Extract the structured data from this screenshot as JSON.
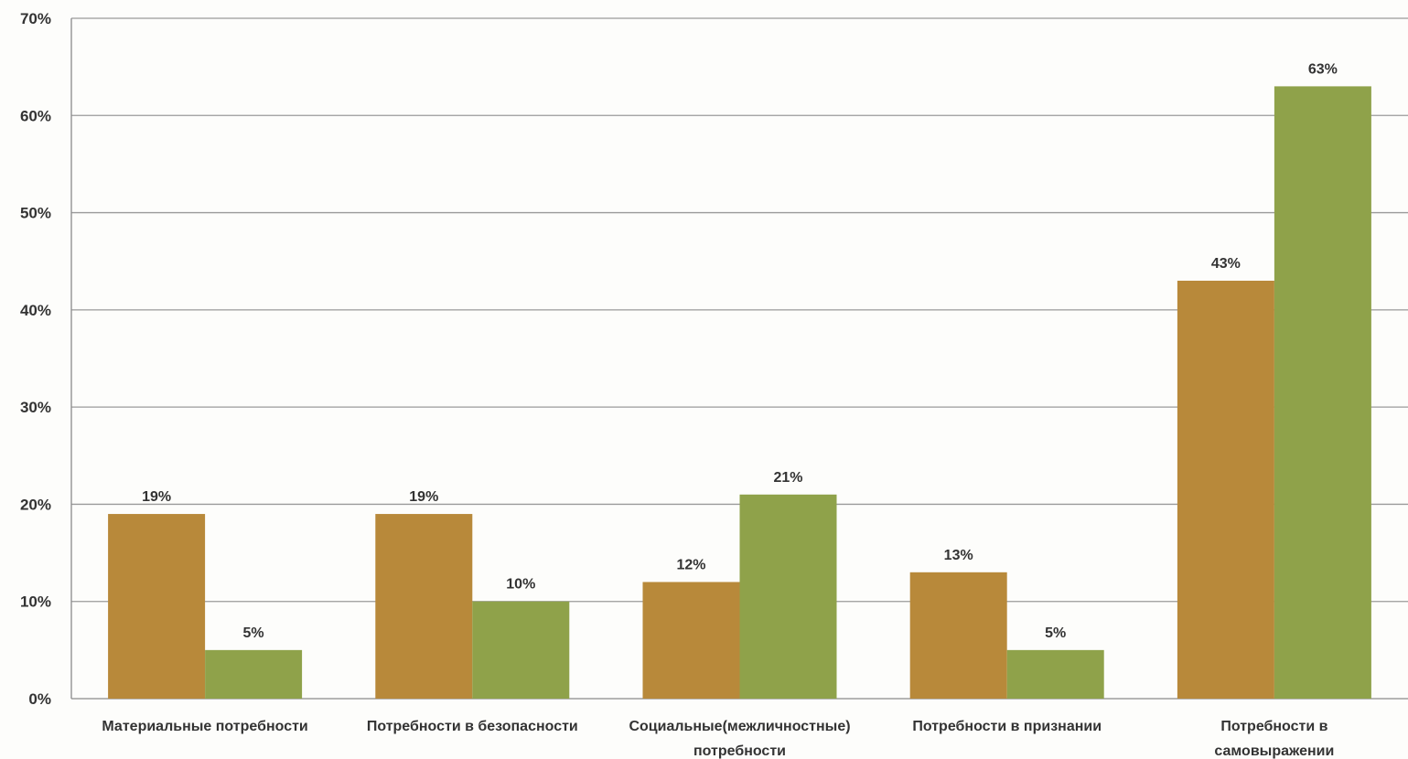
{
  "chart_data": {
    "type": "bar",
    "categories": [
      [
        "Материальные потребности"
      ],
      [
        "Потребности в безопасности"
      ],
      [
        "Социальные(межличностные)",
        "потребности"
      ],
      [
        "Потребности в признании"
      ],
      [
        "Потребности в",
        "самовыражении"
      ]
    ],
    "series": [
      {
        "values": [
          19,
          19,
          12,
          13,
          43
        ],
        "labels": [
          "19%",
          "19%",
          "12%",
          "13%",
          "43%"
        ],
        "color": "#b8893a"
      },
      {
        "values": [
          5,
          10,
          21,
          5,
          63
        ],
        "labels": [
          "5%",
          "10%",
          "21%",
          "5%",
          "63%"
        ],
        "color": "#8fa24a"
      }
    ],
    "ylim": [
      0,
      70
    ],
    "yticks": [
      0,
      10,
      20,
      30,
      40,
      50,
      60,
      70
    ],
    "ytick_labels": [
      "0%",
      "10%",
      "20%",
      "30%",
      "40%",
      "50%",
      "60%",
      "70%"
    ],
    "grid": true,
    "legend": "none"
  }
}
